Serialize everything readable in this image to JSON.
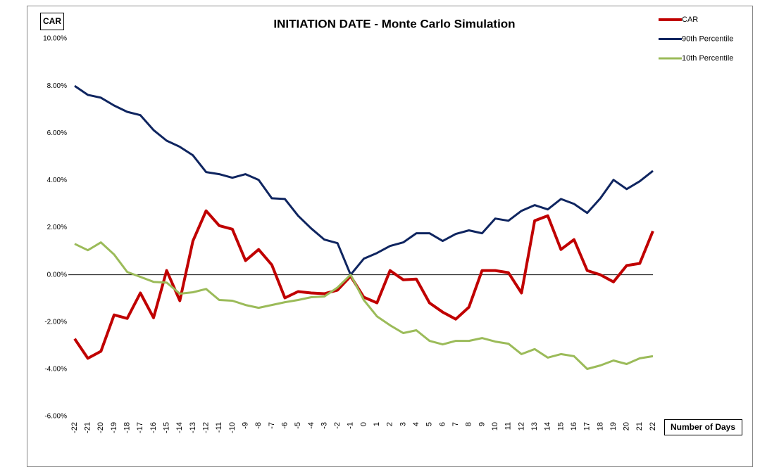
{
  "chart_data": {
    "type": "line",
    "title": "INITIATION DATE - Monte Carlo Simulation",
    "y_label": "CAR",
    "x_label": "Number of Days",
    "categories": [
      "-22",
      "-21",
      "-20",
      "-19",
      "-18",
      "-17",
      "-16",
      "-15",
      "-14",
      "-13",
      "-12",
      "-11",
      "-10",
      "-9",
      "-8",
      "-7",
      "-6",
      "-5",
      "-4",
      "-3",
      "-2",
      "-1",
      "0",
      "1",
      "2",
      "3",
      "4",
      "5",
      "6",
      "7",
      "8",
      "9",
      "10",
      "11",
      "12",
      "13",
      "14",
      "15",
      "16",
      "17",
      "18",
      "19",
      "20",
      "21",
      "22"
    ],
    "series": [
      {
        "name": "CAR",
        "color": "#c00000",
        "values": [
          -2.71,
          -3.54,
          -3.24,
          -1.7,
          -1.85,
          -0.77,
          -1.82,
          0.18,
          -1.1,
          1.43,
          2.71,
          2.08,
          1.93,
          0.6,
          1.07,
          0.42,
          -0.98,
          -0.71,
          -0.77,
          -0.8,
          -0.65,
          -0.06,
          -0.95,
          -1.19,
          0.18,
          -0.21,
          -0.18,
          -1.19,
          -1.58,
          -1.88,
          -1.37,
          0.18,
          0.18,
          0.09,
          -0.77,
          2.29,
          2.5,
          1.07,
          1.49,
          0.18,
          0.0,
          -0.3,
          0.39,
          0.48,
          1.85
        ]
      },
      {
        "name": "90th Percentile",
        "color": "#0f2560",
        "values": [
          8.0,
          7.62,
          7.5,
          7.17,
          6.9,
          6.76,
          6.13,
          5.68,
          5.42,
          5.06,
          4.35,
          4.26,
          4.11,
          4.26,
          4.02,
          3.24,
          3.21,
          2.5,
          1.96,
          1.49,
          1.34,
          0.0,
          0.68,
          0.92,
          1.22,
          1.37,
          1.76,
          1.76,
          1.43,
          1.73,
          1.88,
          1.76,
          2.38,
          2.29,
          2.71,
          2.95,
          2.77,
          3.21,
          3.0,
          2.62,
          3.24,
          4.02,
          3.63,
          3.96,
          4.4
        ]
      },
      {
        "name": "10th Percentile",
        "color": "#9bbb59",
        "values": [
          1.31,
          1.04,
          1.37,
          0.86,
          0.12,
          -0.09,
          -0.3,
          -0.33,
          -0.8,
          -0.74,
          -0.6,
          -1.07,
          -1.1,
          -1.28,
          -1.4,
          -1.28,
          -1.16,
          -1.07,
          -0.95,
          -0.92,
          -0.54,
          0.0,
          -1.07,
          -1.76,
          -2.14,
          -2.47,
          -2.35,
          -2.8,
          -2.95,
          -2.8,
          -2.8,
          -2.68,
          -2.83,
          -2.92,
          -3.36,
          -3.15,
          -3.51,
          -3.36,
          -3.45,
          -3.99,
          -3.84,
          -3.63,
          -3.78,
          -3.54,
          -3.45
        ]
      }
    ],
    "ylim": [
      -6,
      10
    ],
    "yticks": [
      {
        "value": -6,
        "label": "-6.00%"
      },
      {
        "value": -4,
        "label": "-4.00%"
      },
      {
        "value": -2,
        "label": "-2.00%"
      },
      {
        "value": 0,
        "label": "0.00%"
      },
      {
        "value": 2,
        "label": "2.00%"
      },
      {
        "value": 4,
        "label": "4.00%"
      },
      {
        "value": 6,
        "label": "6.00%"
      },
      {
        "value": 8,
        "label": "8.00%"
      },
      {
        "value": 10,
        "label": "10.00%"
      }
    ],
    "grid": false,
    "legend": "top-right"
  }
}
